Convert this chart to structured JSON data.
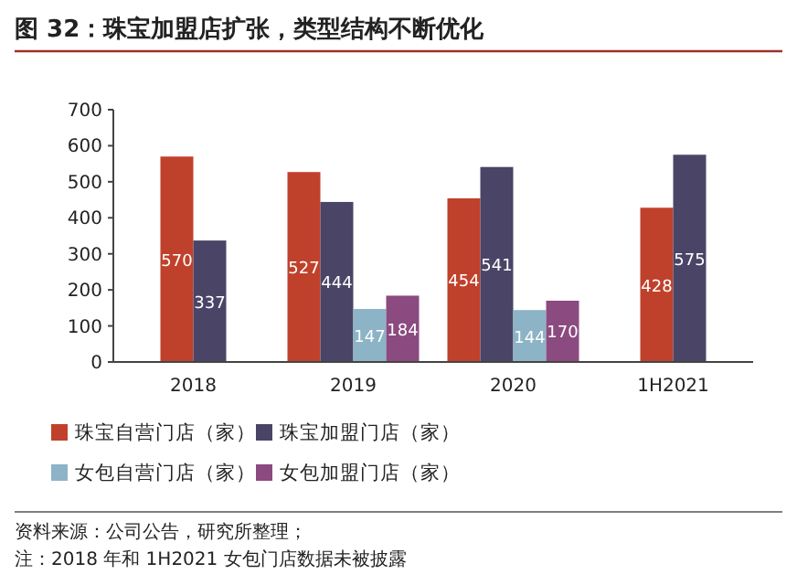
{
  "chart_data": {
    "type": "bar",
    "title": "图 32：珠宝加盟店扩张，类型结构不断优化",
    "categories": [
      "2018",
      "2019",
      "2020",
      "1H2021"
    ],
    "series": [
      {
        "name": "珠宝自营门店（家）",
        "color": "#c0412b",
        "values": [
          570,
          527,
          454,
          428
        ]
      },
      {
        "name": "珠宝加盟门店（家）",
        "color": "#4a4566",
        "values": [
          337,
          444,
          541,
          575
        ]
      },
      {
        "name": "女包自营门店（家）",
        "color": "#8cb3c6",
        "values": [
          null,
          147,
          144,
          null
        ]
      },
      {
        "name": "女包加盟门店（家）",
        "color": "#8b4a80",
        "values": [
          null,
          184,
          170,
          null
        ]
      }
    ],
    "ylim": [
      0,
      700
    ],
    "yticks": [
      0,
      100,
      200,
      300,
      400,
      500,
      600,
      700
    ],
    "data_labels": true,
    "legend": "bottom",
    "grid": false,
    "annotations": [
      "资料来源：公司公告，研究所整理；",
      "注：2018 年和 1H2021 女包门店数据未被披露"
    ]
  }
}
